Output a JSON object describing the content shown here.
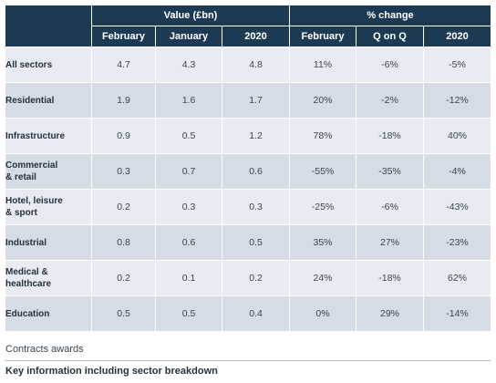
{
  "header": {
    "group_value": "Value (£bn)",
    "group_change": "% change",
    "cols": [
      "February",
      "January",
      "2020",
      "February",
      "Q on Q",
      "2020"
    ]
  },
  "rows": [
    {
      "label": [
        "All sectors"
      ],
      "values": [
        "4.7",
        "4.3",
        "4.8",
        "11%",
        "-6%",
        "-5%"
      ]
    },
    {
      "label": [
        "Residential"
      ],
      "values": [
        "1.9",
        "1.6",
        "1.7",
        "20%",
        "-2%",
        "-12%"
      ]
    },
    {
      "label": [
        "Infrastructure"
      ],
      "values": [
        "0.9",
        "0.5",
        "1.2",
        "78%",
        "-18%",
        "40%"
      ]
    },
    {
      "label": [
        "Commercial",
        "& retail"
      ],
      "values": [
        "0.3",
        "0.7",
        "0.6",
        "-55%",
        "-35%",
        "-4%"
      ]
    },
    {
      "label": [
        "Hotel, leisure",
        "& sport"
      ],
      "values": [
        "0.2",
        "0.3",
        "0.3",
        "-25%",
        "-6%",
        "-43%"
      ]
    },
    {
      "label": [
        "Industrial"
      ],
      "values": [
        "0.8",
        "0.6",
        "0.5",
        "35%",
        "27%",
        "-23%"
      ]
    },
    {
      "label": [
        "Medical &",
        "healthcare"
      ],
      "values": [
        "0.2",
        "0.1",
        "0.2",
        "24%",
        "-18%",
        "62%"
      ]
    },
    {
      "label": [
        "Education"
      ],
      "values": [
        "0.5",
        "0.5",
        "0.4",
        "0%",
        "29%",
        "-14%"
      ]
    }
  ],
  "caption": "Contracts awards",
  "subcaption": "Key information including sector breakdown",
  "colors": {
    "header_bg": "#1d3a55",
    "row_light": "#e8ecf2",
    "row_dark": "#d5dce6"
  }
}
